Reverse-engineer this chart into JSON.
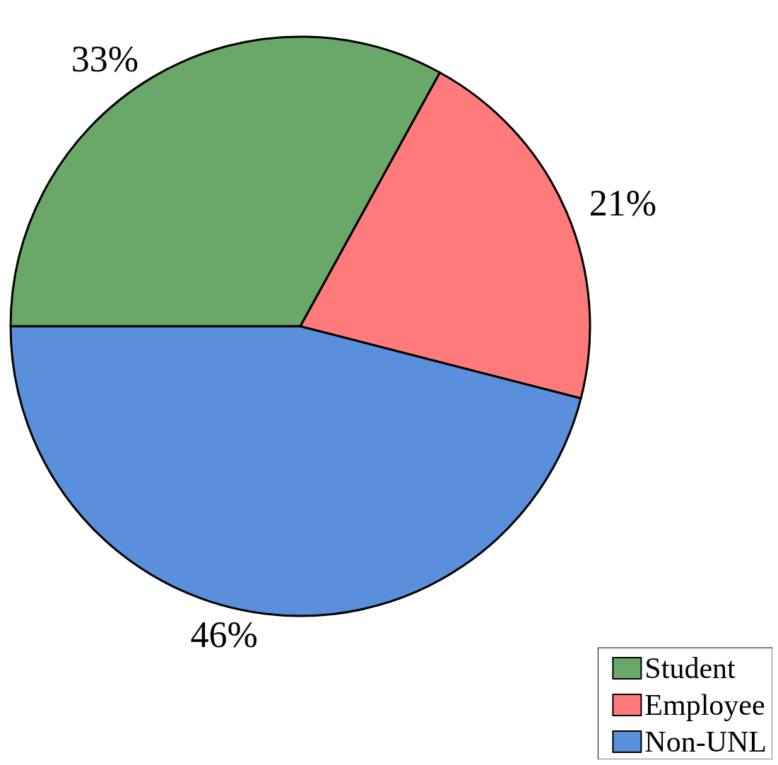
{
  "chart_data": {
    "type": "pie",
    "categories": [
      "Student",
      "Employee",
      "Non-UNL"
    ],
    "values": [
      33,
      21,
      46
    ],
    "value_labels": [
      "33%",
      "21%",
      "46%"
    ],
    "colors": [
      "#6aa86a",
      "#ff7a7a",
      "#5a8fdb"
    ],
    "legend": "bottom right"
  }
}
